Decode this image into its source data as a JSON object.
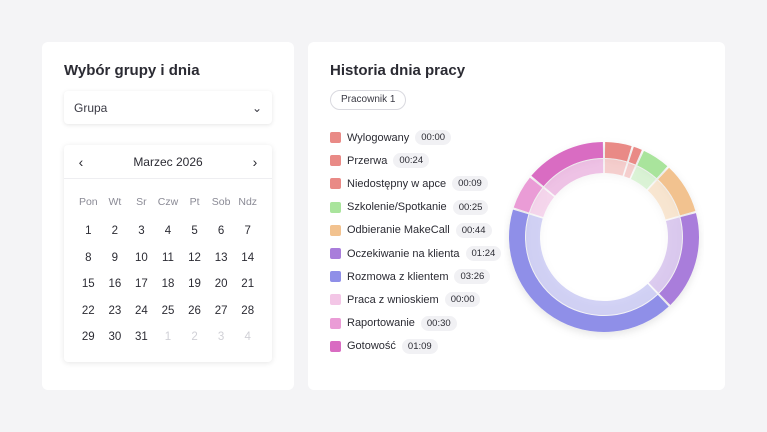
{
  "left": {
    "title": "Wybór grupy i dnia",
    "group_select": {
      "value": "Grupa"
    },
    "calendar": {
      "month": "Marzec 2026",
      "prev": "‹",
      "next": "›",
      "weekdays": [
        "Pon",
        "Wt",
        "Sr",
        "Czw",
        "Pt",
        "Sob",
        "Ndz"
      ],
      "days": [
        "1",
        "2",
        "3",
        "4",
        "5",
        "6",
        "7",
        "8",
        "9",
        "10",
        "11",
        "12",
        "13",
        "14",
        "15",
        "16",
        "17",
        "18",
        "19",
        "20",
        "21",
        "22",
        "23",
        "24",
        "25",
        "26",
        "27",
        "28",
        "29",
        "30",
        "31",
        "1",
        "2",
        "3",
        "4"
      ],
      "muted_from": 31
    }
  },
  "right": {
    "title": "Historia dnia pracy",
    "employee_chip": "Pracownik 1",
    "legend": [
      {
        "name": "Wylogowany",
        "time": "00:00",
        "color": "#e98a86"
      },
      {
        "name": "Przerwa",
        "time": "00:24",
        "color": "#e98a86"
      },
      {
        "name": "Niedostępny w apce",
        "time": "00:09",
        "color": "#e98a86"
      },
      {
        "name": "Szkolenie/Spotkanie",
        "time": "00:25",
        "color": "#a9e49c"
      },
      {
        "name": "Odbieranie MakeCall",
        "time": "00:44",
        "color": "#f2c28f"
      },
      {
        "name": "Oczekiwanie na klienta",
        "time": "01:24",
        "color": "#a97ddb"
      },
      {
        "name": "Rozmowa z klientem",
        "time": "03:26",
        "color": "#8f8fe8"
      },
      {
        "name": "Praca z wnioskiem",
        "time": "00:00",
        "color": "#f3c6e6"
      },
      {
        "name": "Raportowanie",
        "time": "00:30",
        "color": "#ea9cd6"
      },
      {
        "name": "Gotowość",
        "time": "01:09",
        "color": "#d96cc2"
      }
    ]
  }
}
